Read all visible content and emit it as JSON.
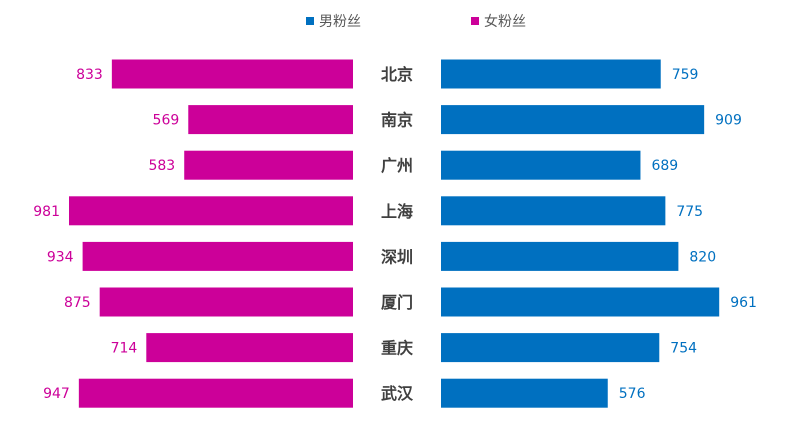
{
  "legend": {
    "male_label": "男粉丝",
    "female_label": "女粉丝"
  },
  "colors": {
    "male": "#0070C0",
    "female": "#CC0099",
    "city_text": "#404040"
  },
  "chart_data": {
    "type": "bar",
    "orientation": "horizontal-butterfly",
    "categories": [
      "北京",
      "南京",
      "广州",
      "上海",
      "深圳",
      "厦门",
      "重庆",
      "武汉"
    ],
    "series": [
      {
        "name": "男粉丝",
        "side": "right",
        "values": [
          759,
          909,
          689,
          775,
          820,
          961,
          754,
          576
        ]
      },
      {
        "name": "女粉丝",
        "side": "left",
        "values": [
          833,
          569,
          583,
          981,
          934,
          875,
          714,
          947
        ]
      }
    ],
    "xlim": [
      0,
      1000
    ],
    "grid": false,
    "legend_position": "top-center"
  }
}
